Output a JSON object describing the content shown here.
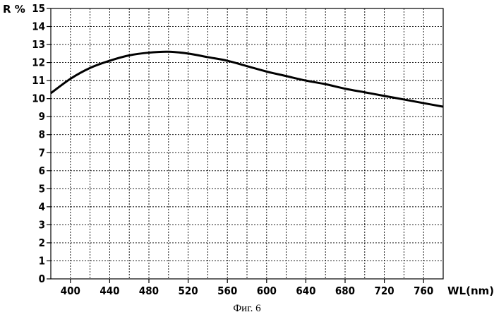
{
  "chart_data": {
    "type": "line",
    "ylabel": "R %",
    "xlabel": "WL(nm)",
    "caption": "Фиг. 6",
    "xlim": [
      380,
      780
    ],
    "ylim": [
      0,
      15
    ],
    "x_ticks": [
      400,
      440,
      480,
      520,
      560,
      600,
      640,
      680,
      720,
      760
    ],
    "y_ticks": [
      0,
      1,
      2,
      3,
      4,
      5,
      6,
      7,
      8,
      9,
      10,
      11,
      12,
      13,
      14,
      15
    ],
    "grid": true,
    "series": [
      {
        "x": [
          380,
          400,
          420,
          440,
          460,
          480,
          500,
          520,
          540,
          560,
          580,
          600,
          620,
          640,
          660,
          680,
          700,
          720,
          740,
          760,
          780
        ],
        "y": [
          10.3,
          11.1,
          11.7,
          12.1,
          12.4,
          12.55,
          12.6,
          12.5,
          12.3,
          12.1,
          11.8,
          11.5,
          11.25,
          11.0,
          10.8,
          10.55,
          10.35,
          10.15,
          9.95,
          9.75,
          9.55
        ]
      }
    ]
  }
}
